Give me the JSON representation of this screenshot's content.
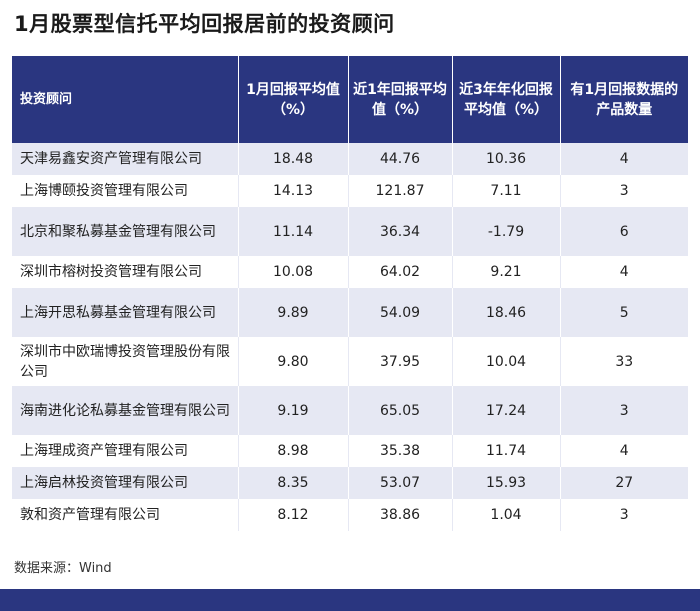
{
  "title": "1月股票型信托平均回报居前的投资顾问",
  "table": {
    "headers": [
      "投资顾问",
      "1月回报平均值（%）",
      "近1年回报平均值（%）",
      "近3年年化回报平均值（%）",
      "有1月回报数据的产品数量"
    ],
    "rows": [
      {
        "name": "天津易鑫安资产管理有限公司",
        "m1": "18.48",
        "y1": "44.76",
        "y3": "10.36",
        "count": "4"
      },
      {
        "name": "上海博颐投资管理有限公司",
        "m1": "14.13",
        "y1": "121.87",
        "y3": "7.11",
        "count": "3"
      },
      {
        "name": "北京和聚私募基金管理有限公司",
        "m1": "11.14",
        "y1": "36.34",
        "y3": "-1.79",
        "count": "6"
      },
      {
        "name": "深圳市榕树投资管理有限公司",
        "m1": "10.08",
        "y1": "64.02",
        "y3": "9.21",
        "count": "4"
      },
      {
        "name": "上海开思私募基金管理有限公司",
        "m1": "9.89",
        "y1": "54.09",
        "y3": "18.46",
        "count": "5"
      },
      {
        "name": "深圳市中欧瑞博投资管理股份有限公司",
        "m1": "9.80",
        "y1": "37.95",
        "y3": "10.04",
        "count": "33"
      },
      {
        "name": "海南进化论私募基金管理有限公司",
        "m1": "9.19",
        "y1": "65.05",
        "y3": "17.24",
        "count": "3"
      },
      {
        "name": "上海理成资产管理有限公司",
        "m1": "8.98",
        "y1": "35.38",
        "y3": "11.74",
        "count": "4"
      },
      {
        "name": "上海启林投资管理有限公司",
        "m1": "8.35",
        "y1": "53.07",
        "y3": "15.93",
        "count": "27"
      },
      {
        "name": "敦和资产管理有限公司",
        "m1": "8.12",
        "y1": "38.86",
        "y3": "1.04",
        "count": "3"
      }
    ]
  },
  "source": "数据来源：Wind",
  "colors": {
    "header_bg": "#2a3680",
    "stripe": "#e6e8f3"
  }
}
